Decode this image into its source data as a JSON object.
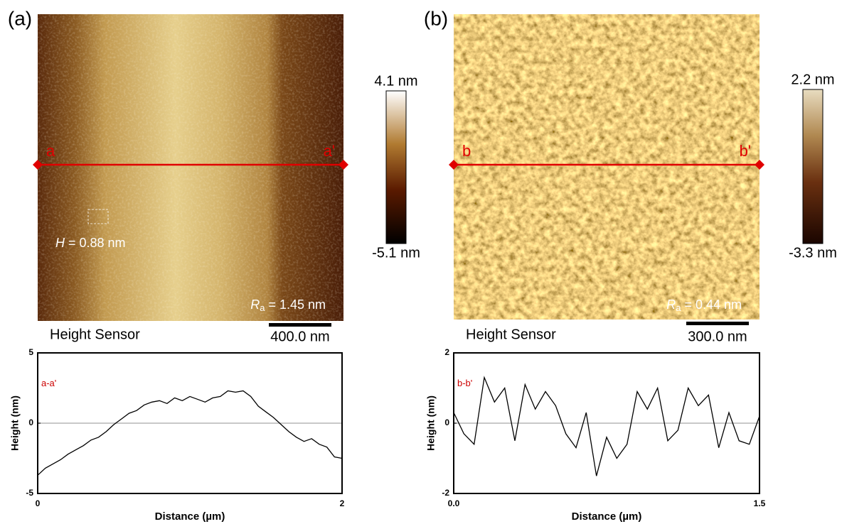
{
  "panels": [
    {
      "label": "(a)",
      "start_marker": "a",
      "end_marker": "a'",
      "step_symbol": "H",
      "step_text": "= 0.88 nm",
      "ra_symbol": "R",
      "ra_subscript": "a",
      "ra_text": "= 1.45 nm",
      "sensor": "Height Sensor",
      "scale_bar": "400.0 nm",
      "colorbar_max": "4.1 nm",
      "colorbar_min": "-5.1 nm"
    },
    {
      "label": "(b)",
      "start_marker": "b",
      "end_marker": "b'",
      "ra_symbol": "R",
      "ra_subscript": "a",
      "ra_text": "= 0.44 nm",
      "sensor": "Height Sensor",
      "scale_bar": "300.0 nm",
      "colorbar_max": "2.2 nm",
      "colorbar_min": "-3.3 nm"
    }
  ],
  "chart_data": [
    {
      "type": "line",
      "annotation": "a-a'",
      "x_label": "Distance (µm)",
      "y_label": "Height (nm)",
      "color": "#000000",
      "zero_line": true,
      "xlim": [
        0,
        2
      ],
      "xticks": [
        0,
        2
      ],
      "ylim": [
        -5,
        5
      ],
      "yticks": [
        -5,
        0,
        5
      ],
      "x": [
        0,
        0.05,
        0.1,
        0.15,
        0.2,
        0.25,
        0.3,
        0.35,
        0.4,
        0.45,
        0.5,
        0.55,
        0.6,
        0.65,
        0.7,
        0.75,
        0.8,
        0.85,
        0.9,
        0.95,
        1.0,
        1.05,
        1.1,
        1.15,
        1.2,
        1.25,
        1.3,
        1.35,
        1.4,
        1.45,
        1.5,
        1.55,
        1.6,
        1.65,
        1.7,
        1.75,
        1.8,
        1.85,
        1.9,
        1.95,
        2.0
      ],
      "values": [
        -3.7,
        -3.2,
        -2.9,
        -2.6,
        -2.2,
        -1.9,
        -1.6,
        -1.2,
        -1.0,
        -0.6,
        -0.1,
        0.3,
        0.7,
        0.9,
        1.3,
        1.5,
        1.6,
        1.4,
        1.8,
        1.6,
        1.9,
        1.7,
        1.5,
        1.8,
        1.9,
        2.3,
        2.2,
        2.3,
        1.9,
        1.2,
        0.8,
        0.4,
        -0.1,
        -0.6,
        -1.0,
        -1.3,
        -1.1,
        -1.5,
        -1.7,
        -2.4,
        -2.5
      ]
    },
    {
      "type": "line",
      "annotation": "b-b'",
      "x_label": "Distance (µm)",
      "y_label": "Height (nm)",
      "color": "#000000",
      "zero_line": true,
      "xlim": [
        0,
        1.5
      ],
      "xticks": [
        {
          "value": 0,
          "label": "0.0"
        },
        1.5
      ],
      "ylim": [
        -2,
        2
      ],
      "yticks": [
        -2,
        0,
        2
      ],
      "x": [
        0,
        0.05,
        0.1,
        0.15,
        0.2,
        0.25,
        0.3,
        0.35,
        0.4,
        0.45,
        0.5,
        0.55,
        0.6,
        0.65,
        0.7,
        0.75,
        0.8,
        0.85,
        0.9,
        0.95,
        1.0,
        1.05,
        1.1,
        1.15,
        1.2,
        1.25,
        1.3,
        1.35,
        1.4,
        1.45,
        1.5
      ],
      "values": [
        0.3,
        -0.3,
        -0.6,
        1.3,
        0.6,
        1.0,
        -0.5,
        1.1,
        0.4,
        0.9,
        0.5,
        -0.3,
        -0.7,
        0.3,
        -1.5,
        -0.4,
        -1.0,
        -0.6,
        0.9,
        0.4,
        1.0,
        -0.5,
        -0.2,
        1.0,
        0.5,
        0.8,
        -0.7,
        0.3,
        -0.5,
        -0.6,
        0.2
      ]
    }
  ]
}
